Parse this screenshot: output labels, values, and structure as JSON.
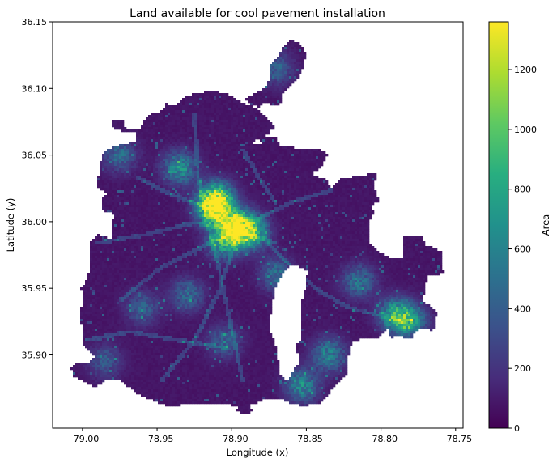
{
  "chart_data": {
    "type": "heatmap",
    "title": "Land available for cool pavement installation",
    "xlabel": "Longitude (x)",
    "ylabel": "Latitude (y)",
    "xlim": [
      -79.02,
      -78.745
    ],
    "ylim": [
      35.845,
      36.15
    ],
    "x_ticks": [
      -79.0,
      -78.95,
      -78.9,
      -78.85,
      -78.8,
      -78.75
    ],
    "x_tick_labels": [
      "−79.00",
      "−78.95",
      "−78.90",
      "−78.85",
      "−78.80",
      "−78.75"
    ],
    "y_ticks": [
      35.9,
      35.95,
      36.0,
      36.05,
      36.1,
      36.15
    ],
    "y_tick_labels": [
      "35.90",
      "35.95",
      "36.00",
      "36.05",
      "36.10",
      "36.15"
    ],
    "colorbar": {
      "label": "Area",
      "colormap": "viridis",
      "range": [
        0,
        1360
      ],
      "ticks": [
        0,
        200,
        400,
        600,
        800,
        1000,
        1200
      ],
      "tick_labels": [
        "0",
        "200",
        "400",
        "600",
        "800",
        "1000",
        "1200"
      ]
    },
    "grid": false,
    "value_background": 60,
    "high_value_zones": [
      {
        "lon": -78.912,
        "lat": 36.01,
        "value": 1250
      },
      {
        "lon": -78.897,
        "lat": 35.997,
        "value": 1200
      },
      {
        "lon": -78.887,
        "lat": 35.992,
        "value": 1000
      },
      {
        "lon": -78.91,
        "lat": 36.018,
        "value": 950
      },
      {
        "lon": -78.905,
        "lat": 35.985,
        "value": 800
      },
      {
        "lon": -78.935,
        "lat": 36.04,
        "value": 700
      },
      {
        "lon": -78.79,
        "lat": 35.93,
        "value": 850
      },
      {
        "lon": -78.78,
        "lat": 35.925,
        "value": 650
      },
      {
        "lon": -78.835,
        "lat": 35.9,
        "value": 600
      },
      {
        "lon": -78.853,
        "lat": 35.877,
        "value": 650
      },
      {
        "lon": -78.93,
        "lat": 35.945,
        "value": 450
      },
      {
        "lon": -78.96,
        "lat": 35.935,
        "value": 400
      },
      {
        "lon": -78.975,
        "lat": 36.05,
        "value": 450
      },
      {
        "lon": -78.87,
        "lat": 35.96,
        "value": 500
      },
      {
        "lon": -78.815,
        "lat": 35.955,
        "value": 500
      },
      {
        "lon": -78.87,
        "lat": 36.115,
        "value": 400
      },
      {
        "lon": -78.985,
        "lat": 35.895,
        "value": 350
      },
      {
        "lon": -78.905,
        "lat": 35.91,
        "value": 400
      }
    ]
  }
}
